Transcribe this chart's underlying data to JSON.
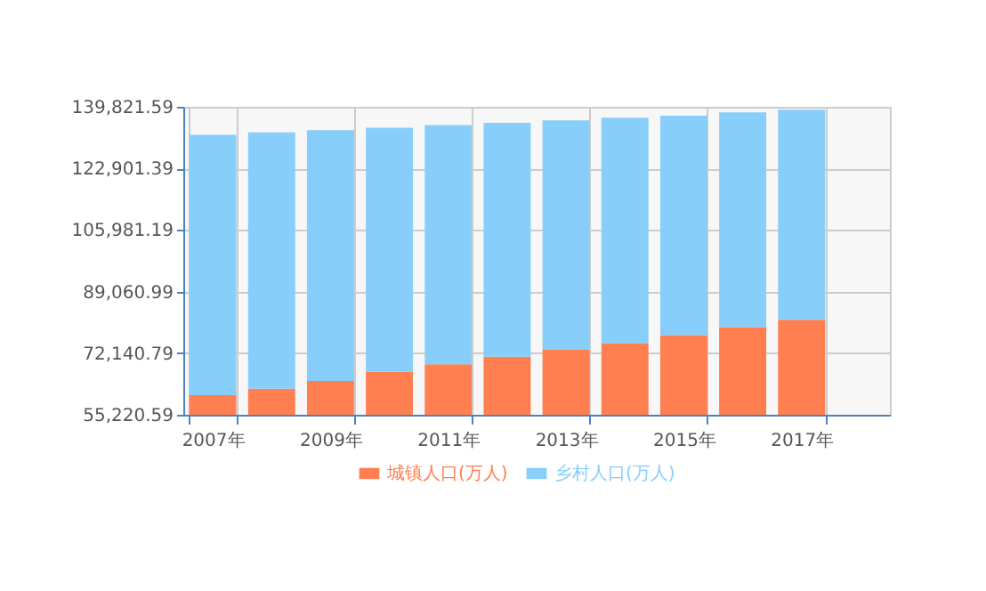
{
  "chart_data": {
    "type": "bar",
    "stacked": true,
    "categories": [
      "2007年",
      null,
      "2009年",
      null,
      "2011年",
      null,
      "2013年",
      null,
      "2015年",
      null,
      "2017年",
      null
    ],
    "series": [
      {
        "name": "城镇人口(万人)",
        "color": "#ff7f50",
        "values": [
          60600,
          62400,
          64500,
          67000,
          69100,
          71200,
          73100,
          74900,
          77100,
          79300,
          81300,
          null
        ]
      },
      {
        "name": "乡村人口(万人)",
        "color": "#87cefa",
        "values": [
          71500,
          70400,
          68900,
          67100,
          65700,
          64200,
          63000,
          61900,
          60300,
          59000,
          57700,
          null
        ]
      }
    ],
    "ylim": [
      55220.59,
      139821.59
    ],
    "yticks": [
      {
        "value": 55220.59,
        "label": "55,220.59"
      },
      {
        "value": 72140.79,
        "label": "72,140.79"
      },
      {
        "value": 89060.99,
        "label": "89,060.99"
      },
      {
        "value": 105981.19,
        "label": "105,981.19"
      },
      {
        "value": 122901.39,
        "label": "122,901.39"
      },
      {
        "value": 139821.59,
        "label": "139,821.59"
      }
    ],
    "grid": true,
    "legend": "bottom"
  }
}
